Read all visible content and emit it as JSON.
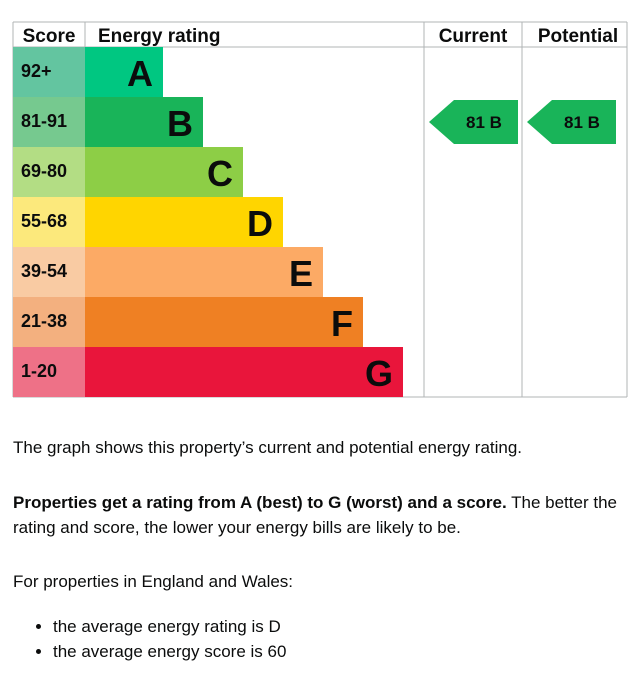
{
  "chart_data": {
    "type": "bar",
    "headers": {
      "score": "Score",
      "energy_rating": "Energy rating",
      "current": "Current",
      "potential": "Potential"
    },
    "bands": [
      {
        "score_range": "92+",
        "letter": "A",
        "min": 92,
        "max": 100,
        "color": "#008054",
        "score_color": "#63c5a0"
      },
      {
        "score_range": "81-91",
        "letter": "B",
        "min": 81,
        "max": 91,
        "color": "#19b459",
        "score_color": "#76c98f"
      },
      {
        "score_range": "69-80",
        "letter": "C",
        "min": 69,
        "max": 80,
        "color": "#8dce46",
        "score_color": "#b3dd84"
      },
      {
        "score_range": "55-68",
        "letter": "D",
        "min": 55,
        "max": 68,
        "color": "#ffd500",
        "score_color": "#fce97c"
      },
      {
        "score_range": "39-54",
        "letter": "E",
        "min": 39,
        "max": 54,
        "color": "#fcaa65",
        "score_color": "#f9cba3"
      },
      {
        "score_range": "21-38",
        "letter": "F",
        "min": 21,
        "max": 38,
        "color": "#ef8023",
        "score_color": "#f3b07f"
      },
      {
        "score_range": "1-20",
        "letter": "G",
        "min": 1,
        "max": 20,
        "color": "#e9153b",
        "score_color": "#ee7187"
      }
    ],
    "current": {
      "score": 81,
      "letter": "B",
      "label": "81  B"
    },
    "potential": {
      "score": 81,
      "letter": "B",
      "label": "81  B"
    }
  },
  "colors": {
    "band_a": "#00c781",
    "band_b": "#19b459",
    "band_c": "#8dce46",
    "band_d": "#ffd500",
    "band_e": "#fcaa65",
    "band_f": "#ef8023",
    "band_g": "#e9153b",
    "grid": "#b1b4b6",
    "text": "#0b0c0c"
  },
  "text": {
    "graph_note": "The graph shows this property’s current and potential energy rating.",
    "rating_bold": "Properties get a rating from A (best) to G (worst) and a score.",
    "rating_rest": " The better the rating and score, the lower your energy bills are likely to be.",
    "region_intro": "For properties in England and Wales:",
    "facts": [
      "the average energy rating is D",
      "the average energy score is 60"
    ]
  }
}
